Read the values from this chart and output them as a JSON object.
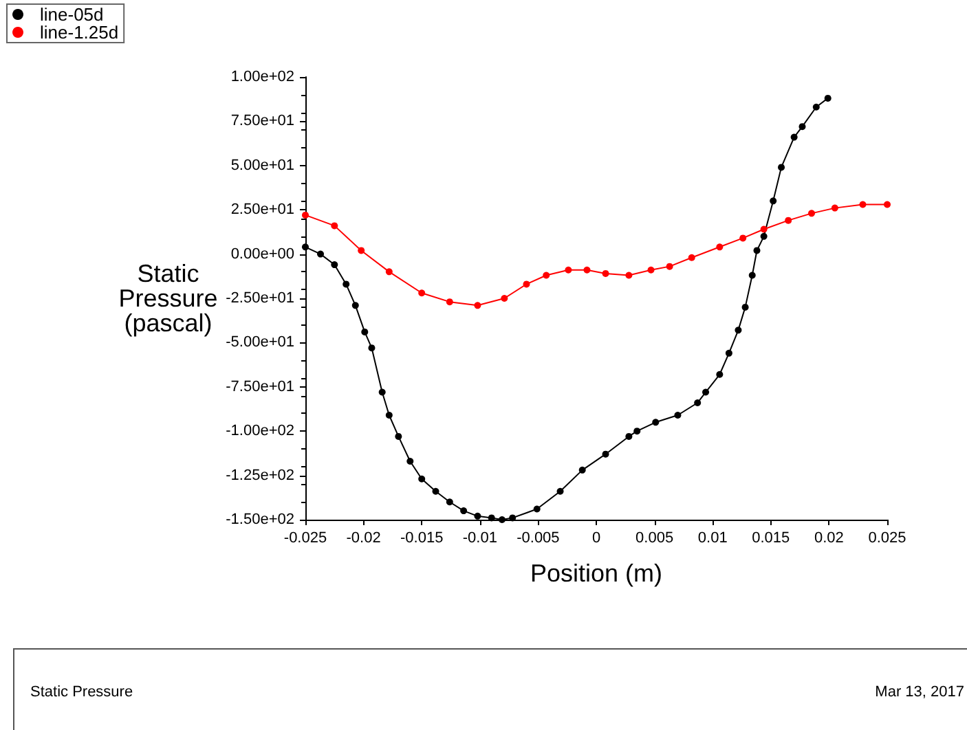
{
  "chart_data": {
    "type": "line",
    "xlabel": "Position (m)",
    "ylabel": "Static\nPressure\n(pascal)",
    "xlim": [
      -0.025,
      0.025
    ],
    "xticks": [
      -0.025,
      -0.02,
      -0.015,
      -0.01,
      -0.005,
      0,
      0.005,
      0.01,
      0.015,
      0.02,
      0.025
    ],
    "ylim": [
      -150,
      100
    ],
    "yticks": [
      {
        "value": -150,
        "label": "-1.50e+02"
      },
      {
        "value": -125,
        "label": "-1.25e+02"
      },
      {
        "value": -100,
        "label": "-1.00e+02"
      },
      {
        "value": -75,
        "label": "-7.50e+01"
      },
      {
        "value": -50,
        "label": "-5.00e+01"
      },
      {
        "value": -25,
        "label": "-2.50e+01"
      },
      {
        "value": 0,
        "label": "0.00e+00"
      },
      {
        "value": 25,
        "label": "2.50e+01"
      },
      {
        "value": 50,
        "label": "5.00e+01"
      },
      {
        "value": 75,
        "label": "7.50e+01"
      },
      {
        "value": 100,
        "label": "1.00e+02"
      }
    ],
    "grid": false,
    "legend": "top left",
    "marker": "circle",
    "line_style": "solid",
    "series": [
      {
        "name": "line-05d",
        "color": "#000000",
        "x": [
          -0.025,
          -0.0237,
          -0.0225,
          -0.0215,
          -0.0207,
          -0.0199,
          -0.0193,
          -0.0184,
          -0.0178,
          -0.017,
          -0.016,
          -0.015,
          -0.0138,
          -0.0126,
          -0.0114,
          -0.0102,
          -0.009,
          -0.0081,
          -0.0072,
          -0.0051,
          -0.0031,
          -0.0012,
          0.0008,
          0.0028,
          0.0035,
          0.0051,
          0.007,
          0.0087,
          0.0094,
          0.0106,
          0.0114,
          0.0122,
          0.0128,
          0.0134,
          0.0138,
          0.0144,
          0.0152,
          0.0159,
          0.017,
          0.0177,
          0.0189,
          0.0199
        ],
        "values": [
          4,
          0,
          -6,
          -17,
          -29,
          -44,
          -53,
          -78,
          -91,
          -103,
          -117,
          -127,
          -134,
          -140,
          -145,
          -148,
          -149,
          -150,
          -149,
          -144,
          -134,
          -122,
          -113,
          -103,
          -100,
          -95,
          -91,
          -84,
          -78,
          -68,
          -56,
          -43,
          -30,
          -12,
          2,
          10,
          30,
          49,
          66,
          72,
          83,
          88
        ]
      },
      {
        "name": "line-1.25d",
        "color": "#ff0000",
        "x": [
          -0.025,
          -0.0225,
          -0.0202,
          -0.0178,
          -0.015,
          -0.0126,
          -0.0102,
          -0.0079,
          -0.006,
          -0.0043,
          -0.0024,
          -0.0008,
          0.0008,
          0.0028,
          0.0047,
          0.0063,
          0.0082,
          0.0106,
          0.0126,
          0.0144,
          0.0165,
          0.0185,
          0.0205,
          0.0229,
          0.025
        ],
        "values": [
          22,
          16,
          2,
          -10,
          -22,
          -27,
          -29,
          -25,
          -17,
          -12,
          -9,
          -9,
          -11,
          -12,
          -9,
          -7,
          -2,
          4,
          9,
          14,
          19,
          23,
          26,
          28,
          28
        ]
      }
    ],
    "annotations": [
      "Static Pressure",
      "Mar 13, 2017"
    ]
  }
}
